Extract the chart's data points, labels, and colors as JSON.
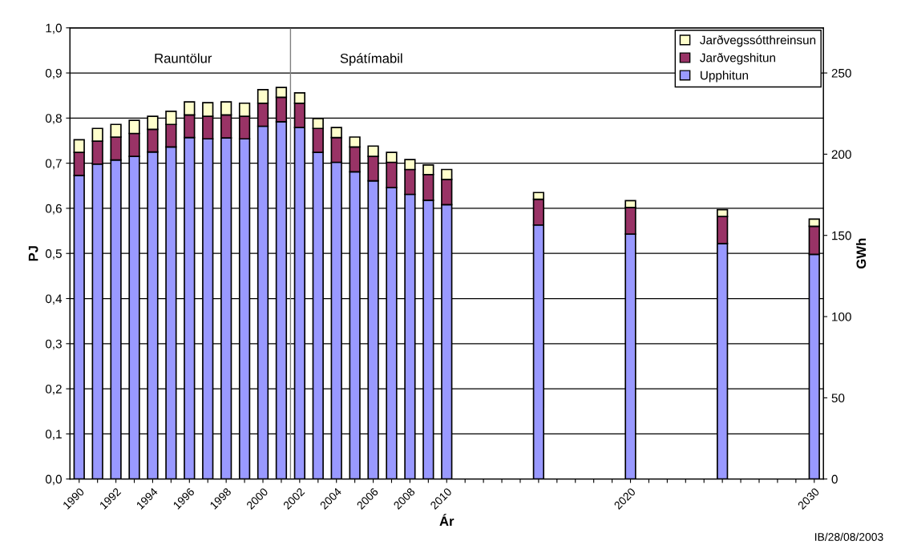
{
  "chart_data": {
    "type": "bar",
    "stacked": true,
    "xlabel": "Ár",
    "ylabel": "PJ",
    "y2label": "GWh",
    "x": [
      1990,
      1991,
      1992,
      1993,
      1994,
      1995,
      1996,
      1997,
      1998,
      1999,
      2000,
      2001,
      2002,
      2003,
      2004,
      2005,
      2006,
      2007,
      2008,
      2009,
      2010,
      2015,
      2020,
      2025,
      2030
    ],
    "series": [
      {
        "name": "Upphitun",
        "color": "#9999ff",
        "values": [
          0.673,
          0.698,
          0.707,
          0.715,
          0.725,
          0.736,
          0.757,
          0.754,
          0.756,
          0.754,
          0.782,
          0.792,
          0.779,
          0.724,
          0.702,
          0.681,
          0.661,
          0.646,
          0.631,
          0.618,
          0.608,
          0.563,
          0.543,
          0.522,
          0.498
        ]
      },
      {
        "name": "Jarðvegshitun",
        "color": "#993366",
        "values": [
          0.051,
          0.051,
          0.051,
          0.051,
          0.05,
          0.05,
          0.05,
          0.05,
          0.051,
          0.05,
          0.051,
          0.054,
          0.054,
          0.053,
          0.055,
          0.055,
          0.054,
          0.056,
          0.055,
          0.057,
          0.056,
          0.057,
          0.059,
          0.06,
          0.062
        ]
      },
      {
        "name": "Jarðvegssótthreinsun",
        "color": "#ffffcc",
        "values": [
          0.028,
          0.028,
          0.028,
          0.029,
          0.029,
          0.029,
          0.029,
          0.03,
          0.029,
          0.029,
          0.03,
          0.022,
          0.023,
          0.022,
          0.022,
          0.022,
          0.023,
          0.022,
          0.022,
          0.021,
          0.022,
          0.015,
          0.015,
          0.015,
          0.016
        ]
      }
    ],
    "xlim": [
      1989.5,
      2030.5
    ],
    "xticks": [
      {
        "value": 1990,
        "label": "1990"
      },
      {
        "value": 1991,
        "label": null
      },
      {
        "value": 1992,
        "label": "1992"
      },
      {
        "value": 1993,
        "label": null
      },
      {
        "value": 1994,
        "label": "1994"
      },
      {
        "value": 1995,
        "label": null
      },
      {
        "value": 1996,
        "label": "1996"
      },
      {
        "value": 1997,
        "label": null
      },
      {
        "value": 1998,
        "label": "1998"
      },
      {
        "value": 1999,
        "label": null
      },
      {
        "value": 2000,
        "label": "2000"
      },
      {
        "value": 2001,
        "label": null
      },
      {
        "value": 2002,
        "label": "2002"
      },
      {
        "value": 2003,
        "label": null
      },
      {
        "value": 2004,
        "label": "2004"
      },
      {
        "value": 2005,
        "label": null
      },
      {
        "value": 2006,
        "label": "2006"
      },
      {
        "value": 2007,
        "label": null
      },
      {
        "value": 2008,
        "label": "2008"
      },
      {
        "value": 2009,
        "label": null
      },
      {
        "value": 2010,
        "label": "2010"
      },
      {
        "value": 2011,
        "label": null
      },
      {
        "value": 2012,
        "label": null
      },
      {
        "value": 2013,
        "label": null
      },
      {
        "value": 2014,
        "label": null
      },
      {
        "value": 2015,
        "label": null
      },
      {
        "value": 2016,
        "label": null
      },
      {
        "value": 2017,
        "label": null
      },
      {
        "value": 2018,
        "label": null
      },
      {
        "value": 2019,
        "label": null
      },
      {
        "value": 2020,
        "label": "2020"
      },
      {
        "value": 2021,
        "label": null
      },
      {
        "value": 2022,
        "label": null
      },
      {
        "value": 2023,
        "label": null
      },
      {
        "value": 2024,
        "label": null
      },
      {
        "value": 2025,
        "label": null
      },
      {
        "value": 2026,
        "label": null
      },
      {
        "value": 2027,
        "label": null
      },
      {
        "value": 2028,
        "label": null
      },
      {
        "value": 2029,
        "label": null
      },
      {
        "value": 2030,
        "label": "2030"
      }
    ],
    "ylim": [
      0,
      1.0
    ],
    "yticks": [
      {
        "value": 0,
        "label": "0,0"
      },
      {
        "value": 0.1,
        "label": "0,1"
      },
      {
        "value": 0.2,
        "label": "0,2"
      },
      {
        "value": 0.3,
        "label": "0,3"
      },
      {
        "value": 0.4,
        "label": "0,4"
      },
      {
        "value": 0.5,
        "label": "0,5"
      },
      {
        "value": 0.6,
        "label": "0,6"
      },
      {
        "value": 0.7,
        "label": "0,7"
      },
      {
        "value": 0.8,
        "label": "0,8"
      },
      {
        "value": 0.9,
        "label": "0,9"
      },
      {
        "value": 1.0,
        "label": "1,0"
      }
    ],
    "y2lim": [
      0,
      277.78
    ],
    "y2ticks": [
      0,
      50,
      100,
      150,
      200,
      250
    ],
    "ref_lines": [
      {
        "axis": "x",
        "value": 2001.5,
        "color": "#808080"
      }
    ],
    "annotations": [
      "Rauntölur",
      "Spátímabil",
      "IB/28/08/2003"
    ],
    "grid": "y",
    "legend": "top right"
  }
}
